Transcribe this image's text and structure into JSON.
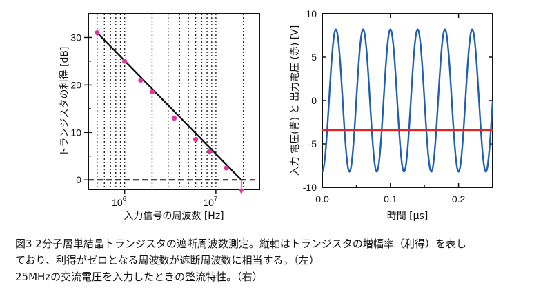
{
  "colors": {
    "gain_line": "#111111",
    "gain_points": "#e0359f",
    "input_wave": "#1f5fb4",
    "output_wave": "#e8231e",
    "frame": "#111111"
  },
  "chart_data": [
    {
      "type": "line",
      "subtype": "scatter-with-fit",
      "xscale": "log",
      "xlabel": "入力信号の周波数 [Hz]",
      "ylabel": "トランジスタの利得 [dB]",
      "xlim": [
        400000,
        30000000
      ],
      "ylim": [
        -2,
        35
      ],
      "yticks": [
        0,
        10,
        20,
        30
      ],
      "xtick_labels": [
        {
          "base": "10",
          "exp": "6",
          "value": 1000000
        },
        {
          "base": "10",
          "exp": "7",
          "value": 10000000
        }
      ],
      "grid": "vertical-dotted",
      "zero_line": "dashed",
      "series": [
        {
          "points": [
            {
              "x": 500000,
              "y": 31.0
            },
            {
              "x": 1000000,
              "y": 25.0
            },
            {
              "x": 1500000,
              "y": 21.0
            },
            {
              "x": 2000000,
              "y": 18.5
            },
            {
              "x": 3500000,
              "y": 13.0
            },
            {
              "x": 6000000,
              "y": 8.5
            },
            {
              "x": 8500000,
              "y": 6.0
            },
            {
              "x": 13000000,
              "y": 2.5
            }
          ],
          "fit_line": [
            {
              "x": 500000,
              "y": 31.0
            },
            {
              "x": 19000000,
              "y": 0.0
            }
          ]
        }
      ],
      "annotation": {
        "type": "arrow-down",
        "x": 19000000,
        "y_from": 0,
        "y_to": -3
      }
    },
    {
      "type": "line",
      "xlabel": "時間 [μs]",
      "ylabel": "入力 電圧(青) と 出力電圧 (赤) [V]",
      "xlim": [
        0,
        0.25
      ],
      "ylim": [
        -10,
        10
      ],
      "xticks": [
        "0.0",
        "0.1",
        "0.2"
      ],
      "xtick_values": [
        0.0,
        0.1,
        0.2
      ],
      "yticks": [
        "10",
        "5",
        "0",
        "-5",
        "-10"
      ],
      "ytick_values": [
        10,
        5,
        0,
        -5,
        -10
      ],
      "series": [
        {
          "color_key": "input_wave",
          "kind": "sine",
          "frequency_MHz": 25,
          "amplitude_V": 8.2,
          "offset_V": 0.0,
          "phase_cycles": -0.25
        },
        {
          "color_key": "output_wave",
          "kind": "constant",
          "value_V": -3.4
        }
      ]
    }
  ],
  "caption": {
    "line1": "図3 2分子層単結晶トランジスタの遮断周波数測定。縦軸はトランジスタの増幅率（利得）を表し",
    "line2": "ており、利得がゼロとなる周波数が遮断周波数に相当する。（左）",
    "line3": "25MHzの交流電圧を入力したときの整流特性。（右）"
  }
}
